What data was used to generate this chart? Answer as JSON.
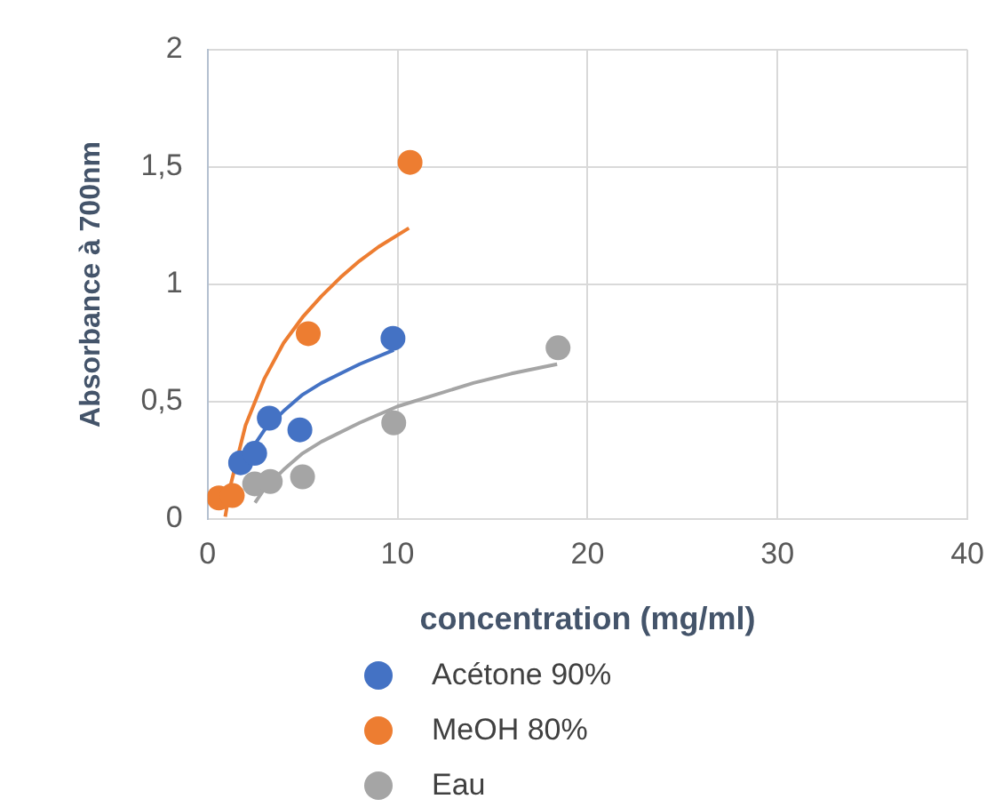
{
  "chart_data": {
    "type": "scatter",
    "xlabel": "concentration (mg/ml)",
    "ylabel": "Absorbance à 700nm",
    "xlim": [
      0,
      40
    ],
    "xticks": [
      0,
      10,
      20,
      30,
      40
    ],
    "ylim": [
      0,
      2
    ],
    "yticks": [
      0,
      {
        "value": 0.5,
        "label": "0,5"
      },
      1,
      {
        "value": 1.5,
        "label": "1,5"
      },
      2
    ],
    "grid": true,
    "legend": "bottom",
    "marker": "circle",
    "series": [
      {
        "name": "Acétone 90%",
        "color": "#4472c4",
        "x": [
          1.74,
          2.48,
          3.25,
          4.86,
          9.76
        ],
        "values": [
          0.24,
          0.28,
          0.43,
          0.38,
          0.77
        ]
      },
      {
        "name": "MeOH 80%",
        "color": "#ed7d31",
        "x": [
          0.6,
          1.3,
          5.3,
          10.66
        ],
        "values": [
          0.09,
          0.1,
          0.79,
          1.52
        ]
      },
      {
        "name": "Eau",
        "color": "#a5a5a5",
        "x": [
          2.48,
          3.3,
          5.0,
          9.8,
          18.45
        ],
        "values": [
          0.15,
          0.16,
          0.18,
          0.41,
          0.73
        ]
      },
      {
        "type": "line",
        "marker": "none",
        "line_style": "solid",
        "color": "#4472c4",
        "x": [
          1.7,
          2,
          3,
          4,
          5,
          6,
          7,
          8,
          9.8
        ],
        "values": [
          0.21,
          0.26,
          0.38,
          0.46,
          0.53,
          0.58,
          0.62,
          0.66,
          0.72
        ]
      },
      {
        "type": "line",
        "marker": "none",
        "line_style": "solid",
        "color": "#ed7d31",
        "x": [
          0.93,
          1.2,
          2,
          3,
          4,
          5,
          6,
          7,
          8,
          9,
          10.6
        ],
        "values": [
          0.01,
          0.14,
          0.4,
          0.6,
          0.75,
          0.86,
          0.95,
          1.03,
          1.1,
          1.16,
          1.24
        ]
      },
      {
        "type": "line",
        "marker": "none",
        "line_style": "solid",
        "color": "#a5a5a5",
        "x": [
          2.5,
          3,
          4,
          5,
          6,
          8,
          10,
          12,
          14,
          16,
          18.4
        ],
        "values": [
          0.07,
          0.13,
          0.21,
          0.28,
          0.33,
          0.41,
          0.48,
          0.53,
          0.58,
          0.62,
          0.66
        ]
      }
    ]
  }
}
